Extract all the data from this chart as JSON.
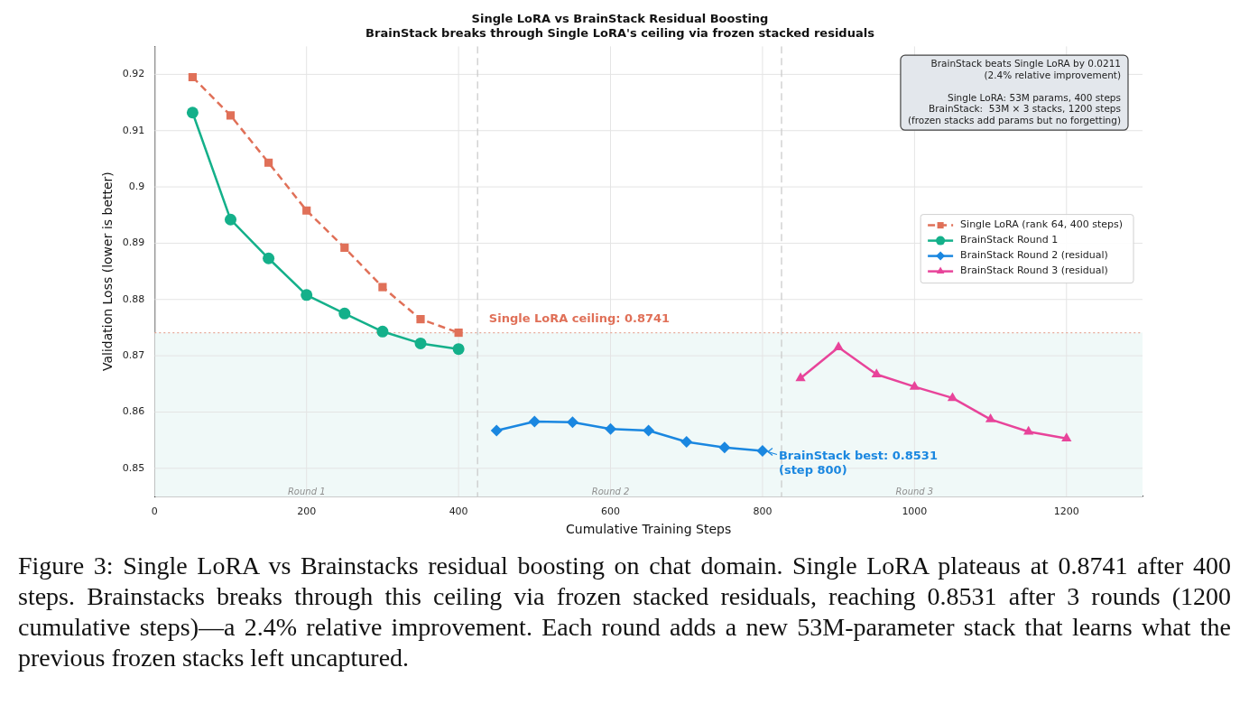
{
  "chart_data": {
    "type": "line",
    "title": "Single LoRA vs BrainStack Residual Boosting",
    "subtitle": "BrainStack breaks through Single LoRA's ceiling via frozen stacked residuals",
    "xlabel": "Cumulative Training Steps",
    "ylabel": "Validation Loss (lower is better)",
    "series": [
      {
        "name": "Single LoRA (rank 64, 400 steps)",
        "color": "#e07058",
        "marker": "square",
        "line_style": "dashed",
        "x": [
          50,
          100,
          150,
          200,
          250,
          300,
          350,
          400
        ],
        "values": [
          0.9195,
          0.9127,
          0.9043,
          0.8958,
          0.8892,
          0.8822,
          0.8765,
          0.8741
        ]
      },
      {
        "name": "BrainStack Round 1",
        "color": "#14b08a",
        "marker": "circle",
        "line_style": "solid",
        "x": [
          50,
          100,
          150,
          200,
          250,
          300,
          350,
          400
        ],
        "values": [
          0.9132,
          0.8942,
          0.8873,
          0.8808,
          0.8775,
          0.8743,
          0.8722,
          0.8712
        ]
      },
      {
        "name": "BrainStack Round 2 (residual)",
        "color": "#1a87e0",
        "marker": "diamond",
        "line_style": "solid",
        "x": [
          450,
          500,
          550,
          600,
          650,
          700,
          750,
          800
        ],
        "values": [
          0.8567,
          0.8583,
          0.8582,
          0.857,
          0.8567,
          0.8547,
          0.8537,
          0.8531
        ]
      },
      {
        "name": "BrainStack Round 3 (residual)",
        "color": "#e8449a",
        "marker": "triangle",
        "line_style": "solid",
        "x": [
          850,
          900,
          950,
          1000,
          1050,
          1100,
          1150,
          1200
        ],
        "values": [
          0.866,
          0.8715,
          0.8667,
          0.8645,
          0.8625,
          0.8587,
          0.8565,
          0.8553
        ]
      }
    ],
    "xlim": [
      0,
      1300
    ],
    "xticks": [
      0,
      200,
      400,
      600,
      800,
      1000,
      1200
    ],
    "ylim": [
      0.845,
      0.925
    ],
    "yticks": [
      0.85,
      0.86,
      0.87,
      0.88,
      0.89,
      0.9,
      0.91,
      0.92
    ],
    "grid": true,
    "legend": "right",
    "ref_lines": [
      {
        "axis": "y",
        "value": 0.8741,
        "color": "#e8a898",
        "line_style": "dotted"
      },
      {
        "axis": "x",
        "value": 425,
        "color": "#c8c8c8",
        "line_style": "dashed"
      },
      {
        "axis": "x",
        "value": 825,
        "color": "#c8c8c8",
        "line_style": "dashed"
      }
    ],
    "bands": [
      {
        "axis": "y",
        "from": 0.845,
        "to": 0.8741,
        "color": "#f0f9f8"
      }
    ],
    "annotations": [
      {
        "text": "Single LoRA ceiling: 0.8741",
        "x": 440,
        "y": 0.8741
      },
      {
        "text": "BrainStack best: 0.8531\n(step 800)",
        "x": 800,
        "y": 0.8531
      },
      {
        "text": "Round 1",
        "x": 200,
        "y": 0.8457
      },
      {
        "text": "Round 2",
        "x": 600,
        "y": 0.8457
      },
      {
        "text": "Round 3",
        "x": 1000,
        "y": 0.8457
      },
      "BrainStack beats Single LoRA by 0.0211\n(2.4% relative improvement)\n\nSingle LoRA: 53M params, 400 steps\nBrainStack:  53M × 3 stacks, 1200 steps\n(frozen stacks add params but no forgetting)",
      "Figure 3: Single LoRA vs Brainstacks residual boosting on chat domain. Single LoRA plateaus at 0.8741 after 400 steps. Brainstacks breaks through this ceiling via frozen stacked residuals, reaching 0.8531 after 3 rounds (1200 cumulative steps)—a 2.4% relative improvement. Each round adds a new 53M-parameter stack that learns what the previous frozen stacks left uncaptured."
    ]
  }
}
